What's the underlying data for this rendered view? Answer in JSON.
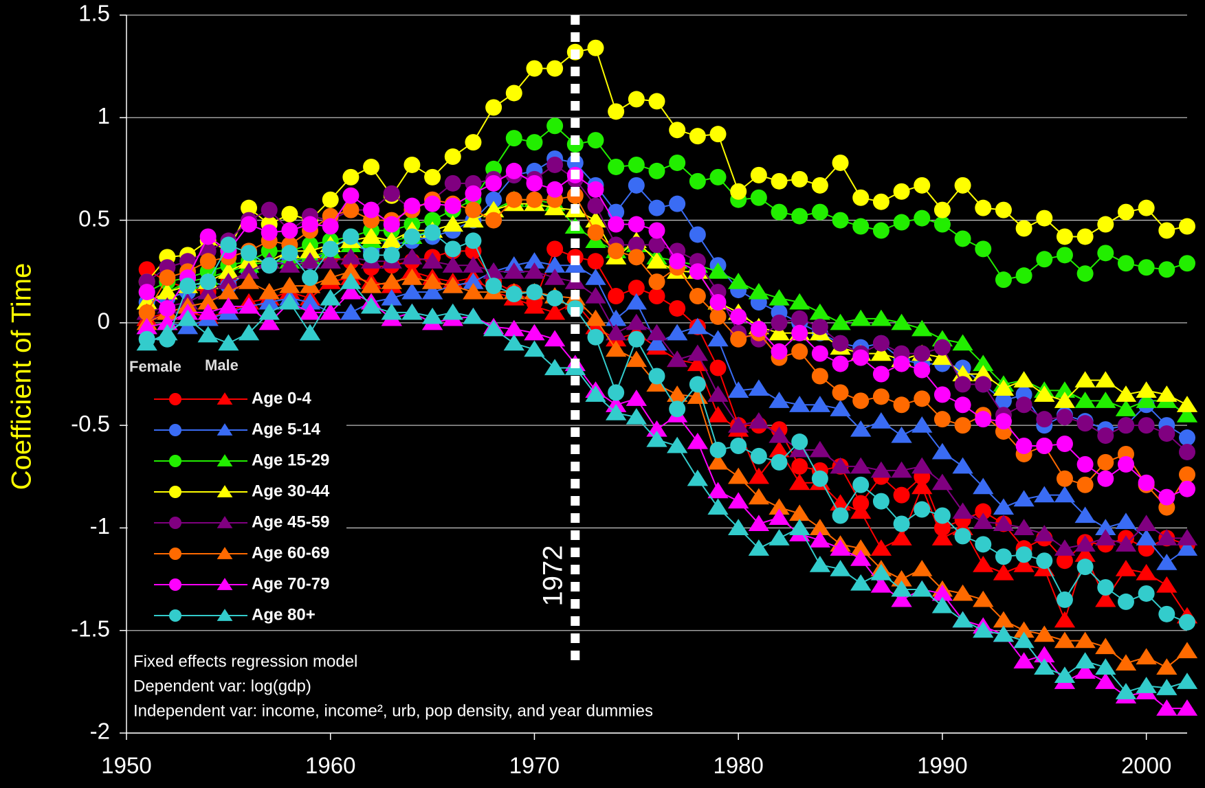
{
  "chart_data": {
    "type": "line",
    "ylabel": "Coefficient of Time",
    "xlim": [
      1950,
      2002
    ],
    "xticks": [
      1950,
      1960,
      1970,
      1980,
      1990,
      2000
    ],
    "ylim": [
      -2,
      1.5
    ],
    "yticks": [
      1.5,
      1,
      0.5,
      0,
      -0.5,
      -1,
      -1.5,
      -2
    ],
    "grid": true,
    "legend_columns": [
      "Female",
      "Male"
    ],
    "markers": [
      "circle",
      "triangle"
    ],
    "annotation": {
      "text": "1972",
      "x": 1972
    },
    "notes": [
      "Fixed effects regression model",
      "Dependent var: log(gdp)",
      "Independent var: income, income², urb, pop density, and year dummies"
    ],
    "x": [
      1951,
      1952,
      1953,
      1954,
      1955,
      1956,
      1957,
      1958,
      1959,
      1960,
      1961,
      1962,
      1963,
      1964,
      1965,
      1966,
      1967,
      1968,
      1969,
      1970,
      1971,
      1972,
      1973,
      1974,
      1975,
      1976,
      1977,
      1978,
      1979,
      1980,
      1981,
      1982,
      1983,
      1984,
      1985,
      1986,
      1987,
      1988,
      1989,
      1990,
      1991,
      1992,
      1993,
      1994,
      1995,
      1996,
      1997,
      1998,
      1999,
      2000,
      2001,
      2002
    ],
    "series": [
      {
        "name": "Age 0-4",
        "color": "#ff0000",
        "female": [
          0.26,
          0.2,
          0.17,
          0.15,
          0.2,
          0.25,
          0.28,
          0.3,
          0.3,
          0.32,
          0.3,
          0.27,
          0.28,
          0.3,
          0.32,
          0.35,
          0.35,
          0.2,
          0.15,
          0.1,
          0.36,
          0.32,
          0.3,
          0.13,
          0.17,
          0.13,
          0.07,
          -0.02,
          -0.22,
          -0.5,
          -0.5,
          -0.52,
          -0.7,
          -0.72,
          -0.7,
          -0.88,
          -0.75,
          -0.84,
          -0.75,
          -1.0,
          -0.96,
          -0.92,
          -0.98,
          -1.1,
          -1.05,
          -1.16,
          -1.07,
          -1.08,
          -1.05,
          -1.1,
          -1.05,
          -1.08
        ],
        "male": [
          0.02,
          0.05,
          0.05,
          0.03,
          0.05,
          0.1,
          0.12,
          0.15,
          0.12,
          0.2,
          0.22,
          0.2,
          0.18,
          0.25,
          0.22,
          0.2,
          0.22,
          0.15,
          0.12,
          0.08,
          0.05,
          0.1,
          -0.02,
          -0.08,
          -0.05,
          -0.12,
          -0.18,
          -0.2,
          -0.45,
          -0.52,
          -0.75,
          -0.62,
          -0.78,
          -0.78,
          -0.88,
          -0.92,
          -1.1,
          -1.05,
          -0.8,
          -1.05,
          -1.0,
          -1.18,
          -1.22,
          -1.18,
          -1.2,
          -1.45,
          -1.13,
          -1.35,
          -1.2,
          -1.22,
          -1.28,
          -1.43
        ]
      },
      {
        "name": "Age 5-14",
        "color": "#3a6cf4",
        "female": [
          0.1,
          0.12,
          0.15,
          0.2,
          0.18,
          0.25,
          0.28,
          0.3,
          0.3,
          0.35,
          0.38,
          0.35,
          0.38,
          0.4,
          0.42,
          0.45,
          0.5,
          0.6,
          0.72,
          0.74,
          0.8,
          0.78,
          0.67,
          0.54,
          0.67,
          0.56,
          0.58,
          0.43,
          0.28,
          0.16,
          0.1,
          0.05,
          0.0,
          -0.05,
          -0.1,
          -0.12,
          -0.1,
          -0.18,
          -0.2,
          -0.2,
          -0.22,
          -0.3,
          -0.38,
          -0.35,
          -0.5,
          -0.45,
          -0.48,
          -0.52,
          -0.5,
          -0.4,
          -0.5,
          -0.56
        ],
        "male": [
          -0.02,
          0.0,
          -0.02,
          0.02,
          0.05,
          0.08,
          0.1,
          0.12,
          0.1,
          0.05,
          0.05,
          0.1,
          0.12,
          0.15,
          0.15,
          0.18,
          0.2,
          0.25,
          0.28,
          0.3,
          0.28,
          0.28,
          0.22,
          0.02,
          0.1,
          -0.1,
          -0.05,
          -0.02,
          -0.08,
          -0.33,
          -0.32,
          -0.38,
          -0.4,
          -0.4,
          -0.42,
          -0.52,
          -0.48,
          -0.55,
          -0.5,
          -0.63,
          -0.7,
          -0.8,
          -0.9,
          -0.86,
          -0.84,
          -0.84,
          -0.94,
          -1.0,
          -0.97,
          -1.05,
          -1.17,
          -1.1
        ]
      },
      {
        "name": "Age 15-29",
        "color": "#22ee00",
        "female": [
          0.15,
          0.2,
          0.22,
          0.25,
          0.28,
          0.3,
          0.35,
          0.35,
          0.38,
          0.4,
          0.42,
          0.45,
          0.45,
          0.48,
          0.5,
          0.55,
          0.6,
          0.75,
          0.9,
          0.88,
          0.96,
          0.87,
          0.89,
          0.76,
          0.77,
          0.74,
          0.78,
          0.69,
          0.71,
          0.6,
          0.61,
          0.54,
          0.52,
          0.54,
          0.5,
          0.47,
          0.45,
          0.49,
          0.51,
          0.48,
          0.41,
          0.36,
          0.21,
          0.23,
          0.31,
          0.33,
          0.24,
          0.34,
          0.29,
          0.27,
          0.26,
          0.29
        ],
        "male": [
          0.1,
          0.15,
          0.2,
          0.22,
          0.25,
          0.28,
          0.3,
          0.3,
          0.32,
          0.35,
          0.38,
          0.4,
          0.4,
          0.42,
          0.45,
          0.48,
          0.5,
          0.55,
          0.6,
          0.6,
          0.58,
          0.47,
          0.4,
          0.35,
          0.38,
          0.32,
          0.3,
          0.28,
          0.25,
          0.2,
          0.15,
          0.12,
          0.1,
          0.05,
          0.0,
          0.02,
          0.02,
          0.0,
          -0.03,
          -0.08,
          -0.1,
          -0.2,
          -0.3,
          -0.28,
          -0.33,
          -0.33,
          -0.38,
          -0.38,
          -0.42,
          -0.38,
          -0.38,
          -0.45
        ]
      },
      {
        "name": "Age 30-44",
        "color": "#ffff00",
        "female": [
          0.2,
          0.32,
          0.33,
          0.4,
          0.35,
          0.56,
          0.48,
          0.53,
          0.5,
          0.6,
          0.71,
          0.76,
          0.62,
          0.77,
          0.71,
          0.81,
          0.88,
          1.05,
          1.12,
          1.24,
          1.24,
          1.32,
          1.34,
          1.03,
          1.09,
          1.08,
          0.94,
          0.91,
          0.92,
          0.64,
          0.72,
          0.69,
          0.7,
          0.67,
          0.78,
          0.61,
          0.59,
          0.64,
          0.67,
          0.55,
          0.67,
          0.56,
          0.55,
          0.46,
          0.51,
          0.42,
          0.42,
          0.48,
          0.54,
          0.56,
          0.45,
          0.47
        ],
        "male": [
          0.1,
          0.15,
          0.18,
          0.2,
          0.25,
          0.3,
          0.3,
          0.35,
          0.35,
          0.38,
          0.4,
          0.42,
          0.4,
          0.45,
          0.45,
          0.48,
          0.5,
          0.55,
          0.58,
          0.58,
          0.56,
          0.55,
          0.5,
          0.32,
          0.4,
          0.3,
          0.25,
          0.25,
          0.1,
          0.05,
          -0.02,
          -0.05,
          -0.05,
          -0.05,
          -0.12,
          -0.15,
          -0.15,
          -0.18,
          -0.15,
          -0.17,
          -0.25,
          -0.25,
          -0.32,
          -0.28,
          -0.35,
          -0.38,
          -0.28,
          -0.28,
          -0.35,
          -0.33,
          -0.35,
          -0.4
        ]
      },
      {
        "name": "Age 45-59",
        "color": "#800080",
        "female": [
          0.2,
          0.27,
          0.3,
          0.35,
          0.4,
          0.5,
          0.55,
          0.45,
          0.52,
          0.5,
          0.55,
          0.55,
          0.63,
          0.55,
          0.6,
          0.68,
          0.68,
          0.7,
          0.72,
          0.7,
          0.77,
          0.7,
          0.57,
          0.38,
          0.38,
          0.38,
          0.35,
          0.3,
          0.15,
          -0.05,
          -0.08,
          0.0,
          0.02,
          -0.02,
          -0.1,
          -0.15,
          -0.1,
          -0.15,
          -0.15,
          -0.12,
          -0.3,
          -0.3,
          -0.45,
          -0.4,
          -0.47,
          -0.46,
          -0.49,
          -0.55,
          -0.5,
          -0.5,
          -0.54,
          -0.63
        ],
        "male": [
          0.05,
          0.08,
          0.1,
          0.15,
          0.2,
          0.25,
          0.3,
          0.28,
          0.3,
          0.3,
          0.32,
          0.3,
          0.3,
          0.32,
          0.3,
          0.28,
          0.28,
          0.25,
          0.25,
          0.25,
          0.22,
          0.2,
          0.13,
          -0.05,
          0.0,
          -0.05,
          -0.18,
          -0.15,
          -0.35,
          -0.5,
          -0.48,
          -0.55,
          -0.62,
          -0.62,
          -0.7,
          -0.7,
          -0.72,
          -0.72,
          -0.7,
          -0.78,
          -0.92,
          -0.97,
          -0.98,
          -1.0,
          -1.03,
          -1.1,
          -1.08,
          -1.05,
          -1.08,
          -0.98,
          -1.05,
          -1.05
        ]
      },
      {
        "name": "Age 60-69",
        "color": "#ff6a00",
        "female": [
          0.05,
          0.22,
          0.25,
          0.3,
          0.32,
          0.35,
          0.4,
          0.38,
          0.45,
          0.52,
          0.55,
          0.5,
          0.5,
          0.55,
          0.6,
          0.58,
          0.55,
          0.5,
          0.6,
          0.6,
          0.6,
          0.62,
          0.44,
          0.35,
          0.32,
          0.2,
          0.27,
          0.13,
          0.03,
          -0.08,
          -0.05,
          -0.17,
          -0.14,
          -0.26,
          -0.34,
          -0.38,
          -0.36,
          -0.4,
          -0.37,
          -0.47,
          -0.5,
          -0.45,
          -0.53,
          -0.64,
          -0.6,
          -0.76,
          -0.79,
          -0.68,
          -0.64,
          -0.79,
          -0.9,
          -0.74
        ],
        "male": [
          0.0,
          0.05,
          0.08,
          0.1,
          0.15,
          0.2,
          0.15,
          0.18,
          0.18,
          0.22,
          0.25,
          0.18,
          0.2,
          0.22,
          0.2,
          0.18,
          0.15,
          0.15,
          0.15,
          0.15,
          0.13,
          0.12,
          0.02,
          -0.13,
          -0.18,
          -0.3,
          -0.35,
          -0.36,
          -0.68,
          -0.75,
          -0.85,
          -0.9,
          -0.93,
          -1.0,
          -1.08,
          -1.1,
          -1.2,
          -1.25,
          -1.2,
          -1.3,
          -1.32,
          -1.35,
          -1.45,
          -1.5,
          -1.52,
          -1.55,
          -1.55,
          -1.58,
          -1.66,
          -1.63,
          -1.68,
          -1.6
        ]
      },
      {
        "name": "Age 70-79",
        "color": "#ff00ff",
        "female": [
          0.15,
          0.07,
          0.22,
          0.42,
          0.35,
          0.48,
          0.44,
          0.45,
          0.48,
          0.47,
          0.62,
          0.55,
          0.48,
          0.57,
          0.58,
          0.57,
          0.63,
          0.68,
          0.74,
          0.68,
          0.65,
          0.72,
          0.65,
          0.48,
          0.48,
          0.45,
          0.3,
          0.25,
          0.1,
          0.03,
          -0.03,
          -0.14,
          -0.05,
          -0.15,
          -0.2,
          -0.17,
          -0.25,
          -0.2,
          -0.23,
          -0.35,
          -0.4,
          -0.47,
          -0.48,
          -0.6,
          -0.6,
          -0.59,
          -0.69,
          -0.76,
          -0.69,
          -0.78,
          -0.85,
          -0.81
        ],
        "male": [
          -0.02,
          0.0,
          0.05,
          0.05,
          0.08,
          0.08,
          0.0,
          0.1,
          0.05,
          0.05,
          0.15,
          0.1,
          0.02,
          0.05,
          0.0,
          0.02,
          0.03,
          -0.02,
          -0.03,
          -0.05,
          -0.08,
          -0.2,
          -0.33,
          -0.4,
          -0.37,
          -0.52,
          -0.45,
          -0.58,
          -0.82,
          -0.87,
          -0.98,
          -0.95,
          -1.03,
          -1.06,
          -1.1,
          -1.15,
          -1.28,
          -1.35,
          -1.3,
          -1.32,
          -1.45,
          -1.48,
          -1.52,
          -1.65,
          -1.62,
          -1.75,
          -1.7,
          -1.75,
          -1.82,
          -1.8,
          -1.88,
          -1.88
        ]
      },
      {
        "name": "Age 80+",
        "color": "#33cccc",
        "female": [
          -0.08,
          -0.08,
          0.18,
          0.2,
          0.38,
          0.34,
          0.28,
          0.34,
          0.22,
          0.36,
          0.42,
          0.33,
          0.33,
          0.42,
          0.44,
          0.36,
          0.4,
          0.18,
          0.14,
          0.15,
          0.12,
          0.07,
          -0.07,
          -0.34,
          -0.08,
          -0.26,
          -0.42,
          -0.3,
          -0.62,
          -0.6,
          -0.65,
          -0.68,
          -0.58,
          -0.76,
          -0.94,
          -0.79,
          -0.87,
          -0.98,
          -0.91,
          -0.94,
          -1.04,
          -1.08,
          -1.14,
          -1.13,
          -1.16,
          -1.35,
          -1.19,
          -1.29,
          -1.36,
          -1.32,
          -1.42,
          -1.46
        ],
        "male": [
          -0.1,
          -0.05,
          0.02,
          -0.06,
          -0.1,
          -0.05,
          0.05,
          0.1,
          -0.05,
          0.12,
          0.2,
          0.08,
          0.05,
          0.05,
          0.03,
          0.05,
          0.03,
          -0.03,
          -0.1,
          -0.13,
          -0.22,
          -0.22,
          -0.35,
          -0.44,
          -0.46,
          -0.57,
          -0.6,
          -0.76,
          -0.9,
          -1.0,
          -1.1,
          -1.05,
          -1.0,
          -1.18,
          -1.2,
          -1.27,
          -1.22,
          -1.3,
          -1.3,
          -1.38,
          -1.45,
          -1.5,
          -1.52,
          -1.55,
          -1.68,
          -1.72,
          -1.65,
          -1.68,
          -1.8,
          -1.77,
          -1.78,
          -1.75
        ]
      }
    ]
  }
}
